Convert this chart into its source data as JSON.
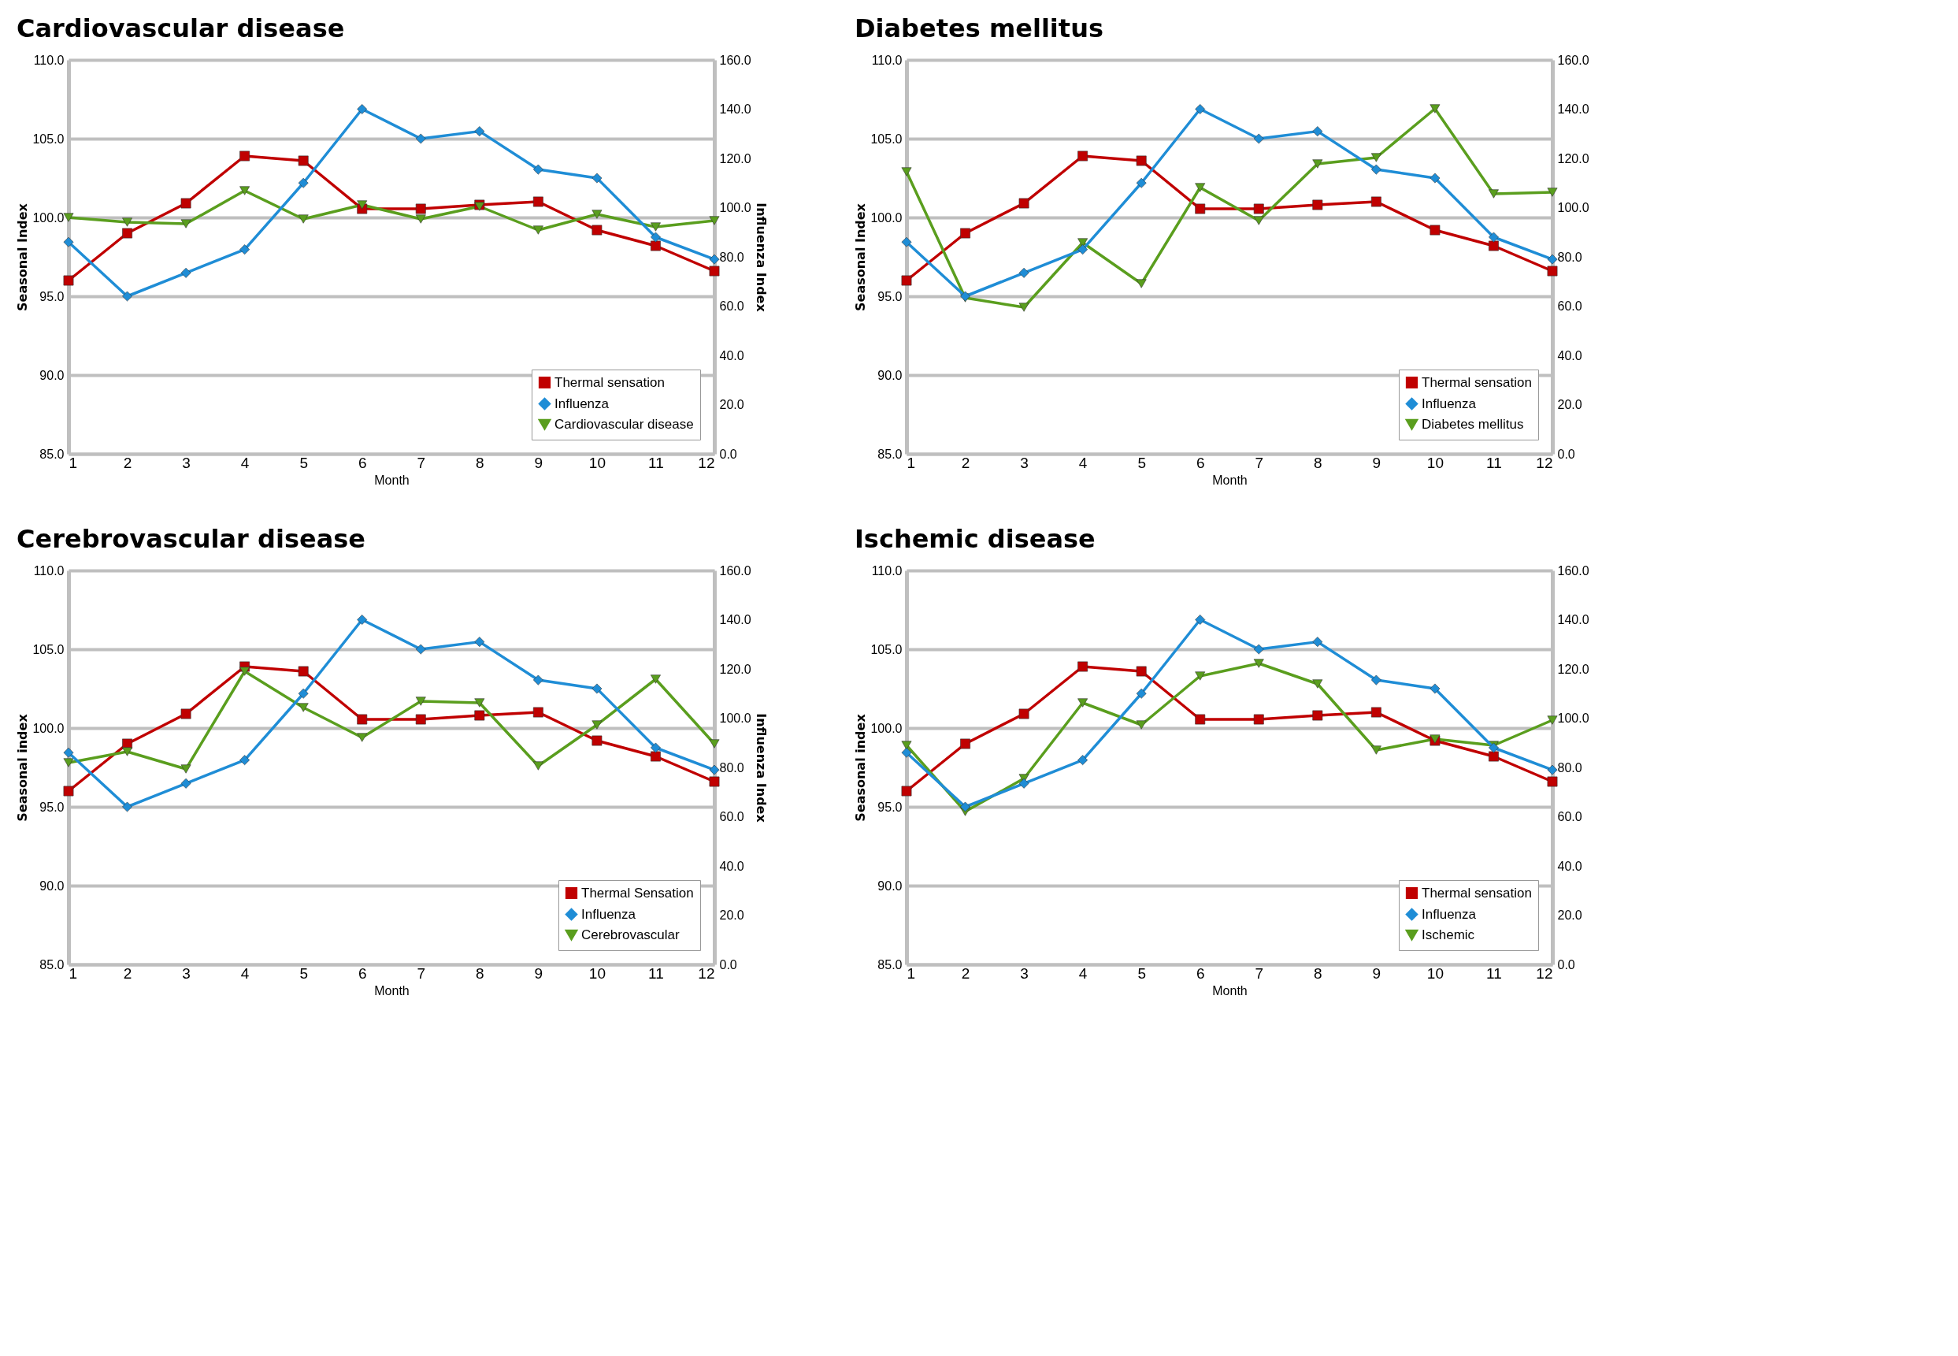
{
  "chart_data": [
    {
      "type": "line",
      "title": "Cardiovascular disease",
      "xlabel": "Month",
      "ylabel": "Seasonal Index",
      "y2label": "Influenza Index",
      "x": [
        1,
        2,
        3,
        4,
        5,
        6,
        7,
        8,
        9,
        10,
        11,
        12
      ],
      "xlim": [
        1,
        12
      ],
      "xticks": [
        1,
        2,
        3,
        4,
        5,
        6,
        7,
        8,
        9,
        10,
        11,
        12
      ],
      "ylim": [
        85,
        110
      ],
      "yticks": [
        {
          "value": 85,
          "label": "85.0"
        },
        {
          "value": 90,
          "label": "90.0"
        },
        {
          "value": 95,
          "label": "95.0"
        },
        {
          "value": 100,
          "label": "100.0"
        },
        {
          "value": 105,
          "label": "105.0"
        },
        {
          "value": 110,
          "label": "110.0"
        }
      ],
      "y2lim": [
        0,
        160
      ],
      "y2ticks": [
        {
          "value": 0,
          "label": "0.0"
        },
        {
          "value": 20,
          "label": "20.0"
        },
        {
          "value": 40,
          "label": "40.0"
        },
        {
          "value": 60,
          "label": "60.0"
        },
        {
          "value": 80,
          "label": "80.0"
        },
        {
          "value": 100,
          "label": "100.0"
        },
        {
          "value": 120,
          "label": "120.0"
        },
        {
          "value": 140,
          "label": "140.0"
        },
        {
          "value": 160,
          "label": "160.0"
        }
      ],
      "grid": "y",
      "legend": "bottom right",
      "line_style": "solid",
      "series": [
        {
          "name": "Thermal sensation",
          "color": "#c00000",
          "marker": "square",
          "values": [
            96.0,
            99.0,
            100.9,
            103.9,
            103.6,
            100.55,
            100.55,
            100.8,
            101.0,
            99.2,
            98.2,
            96.6
          ]
        },
        {
          "name": "Influenza",
          "color": "#1f8dd6",
          "marker": "diamond",
          "axis": "y2",
          "values": [
            86,
            64,
            73.5,
            83,
            110,
            140,
            128,
            131,
            115.5,
            112,
            88,
            79
          ]
        },
        {
          "name": "Cardiovascular disease",
          "color": "#5a9e1e",
          "marker": "triangle",
          "values": [
            100.0,
            99.7,
            99.6,
            101.7,
            99.9,
            100.8,
            99.9,
            100.7,
            99.2,
            100.2,
            99.4,
            99.8
          ]
        }
      ]
    },
    {
      "type": "line",
      "title": "Diabetes mellitus",
      "xlabel": "Month",
      "ylabel": "Seasonal Index",
      "x": [
        1,
        2,
        3,
        4,
        5,
        6,
        7,
        8,
        9,
        10,
        11,
        12
      ],
      "xlim": [
        1,
        12
      ],
      "xticks": [
        1,
        2,
        3,
        4,
        5,
        6,
        7,
        8,
        9,
        10,
        11,
        12
      ],
      "ylim": [
        85,
        110
      ],
      "yticks": [
        {
          "value": 85,
          "label": "85.0"
        },
        {
          "value": 90,
          "label": "90.0"
        },
        {
          "value": 95,
          "label": "95.0"
        },
        {
          "value": 100,
          "label": "100.0"
        },
        {
          "value": 105,
          "label": "105.0"
        },
        {
          "value": 110,
          "label": "110.0"
        }
      ],
      "y2lim": [
        0,
        160
      ],
      "y2ticks": [
        {
          "value": 0,
          "label": "0.0"
        },
        {
          "value": 20,
          "label": "20.0"
        },
        {
          "value": 40,
          "label": "40.0"
        },
        {
          "value": 60,
          "label": "60.0"
        },
        {
          "value": 80,
          "label": "80.0"
        },
        {
          "value": 100,
          "label": "100.0"
        },
        {
          "value": 120,
          "label": "120.0"
        },
        {
          "value": 140,
          "label": "140.0"
        },
        {
          "value": 160,
          "label": "160.0"
        }
      ],
      "grid": "y",
      "legend": "bottom right",
      "line_style": "solid",
      "series": [
        {
          "name": "Thermal sensation",
          "color": "#c00000",
          "marker": "square",
          "values": [
            96.0,
            99.0,
            100.9,
            103.9,
            103.6,
            100.55,
            100.55,
            100.8,
            101.0,
            99.2,
            98.2,
            96.6
          ]
        },
        {
          "name": "Influenza",
          "color": "#1f8dd6",
          "marker": "diamond",
          "axis": "y2",
          "values": [
            86,
            64,
            73.5,
            83,
            110,
            140,
            128,
            131,
            115.5,
            112,
            88,
            79
          ]
        },
        {
          "name": "Diabetes mellitus",
          "color": "#5a9e1e",
          "marker": "triangle",
          "values": [
            102.9,
            94.9,
            94.3,
            98.4,
            95.8,
            101.9,
            99.8,
            103.4,
            103.8,
            106.9,
            101.5,
            101.6
          ]
        }
      ]
    },
    {
      "type": "line",
      "title": "Cerebrovascular disease",
      "xlabel": "Month",
      "ylabel": "Seasonal index",
      "y2label": "Influenza Index",
      "x": [
        1,
        2,
        3,
        4,
        5,
        6,
        7,
        8,
        9,
        10,
        11,
        12
      ],
      "xlim": [
        1,
        12
      ],
      "xticks": [
        1,
        2,
        3,
        4,
        5,
        6,
        7,
        8,
        9,
        10,
        11,
        12
      ],
      "ylim": [
        85,
        110
      ],
      "yticks": [
        {
          "value": 85,
          "label": "85.0"
        },
        {
          "value": 90,
          "label": "90.0"
        },
        {
          "value": 95,
          "label": "95.0"
        },
        {
          "value": 100,
          "label": "100.0"
        },
        {
          "value": 105,
          "label": "105.0"
        },
        {
          "value": 110,
          "label": "110.0"
        }
      ],
      "y2lim": [
        0,
        160
      ],
      "y2ticks": [
        {
          "value": 0,
          "label": "0.0"
        },
        {
          "value": 20,
          "label": "20.0"
        },
        {
          "value": 40,
          "label": "40.0"
        },
        {
          "value": 60,
          "label": "60.0"
        },
        {
          "value": 80,
          "label": "80.0"
        },
        {
          "value": 100,
          "label": "100.0"
        },
        {
          "value": 120,
          "label": "120.0"
        },
        {
          "value": 140,
          "label": "140.0"
        },
        {
          "value": 160,
          "label": "160.0"
        }
      ],
      "grid": "y",
      "legend": "bottom right",
      "line_style": "solid",
      "series": [
        {
          "name": "Thermal Sensation",
          "color": "#c00000",
          "marker": "square",
          "values": [
            96.0,
            99.0,
            100.9,
            103.9,
            103.6,
            100.55,
            100.55,
            100.8,
            101.0,
            99.2,
            98.2,
            96.6
          ]
        },
        {
          "name": "Influenza",
          "color": "#1f8dd6",
          "marker": "diamond",
          "axis": "y2",
          "values": [
            86,
            64,
            73.5,
            83,
            110,
            140,
            128,
            131,
            115.5,
            112,
            88,
            79
          ]
        },
        {
          "name": "Cerebrovascular",
          "color": "#5a9e1e",
          "marker": "triangle",
          "values": [
            97.8,
            98.5,
            97.4,
            103.6,
            101.3,
            99.4,
            101.7,
            101.6,
            97.6,
            100.2,
            103.1,
            99.0
          ]
        }
      ]
    },
    {
      "type": "line",
      "title": "Ischemic disease",
      "xlabel": "Month",
      "ylabel": "Seasonal index",
      "x": [
        1,
        2,
        3,
        4,
        5,
        6,
        7,
        8,
        9,
        10,
        11,
        12
      ],
      "xlim": [
        1,
        12
      ],
      "xticks": [
        1,
        2,
        3,
        4,
        5,
        6,
        7,
        8,
        9,
        10,
        11,
        12
      ],
      "ylim": [
        85,
        110
      ],
      "yticks": [
        {
          "value": 85,
          "label": "85.0"
        },
        {
          "value": 90,
          "label": "90.0"
        },
        {
          "value": 95,
          "label": "95.0"
        },
        {
          "value": 100,
          "label": "100.0"
        },
        {
          "value": 105,
          "label": "105.0"
        },
        {
          "value": 110,
          "label": "110.0"
        }
      ],
      "y2lim": [
        0,
        160
      ],
      "y2ticks": [
        {
          "value": 0,
          "label": "0.0"
        },
        {
          "value": 20,
          "label": "20.0"
        },
        {
          "value": 40,
          "label": "40.0"
        },
        {
          "value": 60,
          "label": "60.0"
        },
        {
          "value": 80,
          "label": "80.0"
        },
        {
          "value": 100,
          "label": "100.0"
        },
        {
          "value": 120,
          "label": "120.0"
        },
        {
          "value": 140,
          "label": "140.0"
        },
        {
          "value": 160,
          "label": "160.0"
        }
      ],
      "grid": "y",
      "legend": "bottom right",
      "line_style": "solid",
      "series": [
        {
          "name": "Thermal sensation",
          "color": "#c00000",
          "marker": "square",
          "values": [
            96.0,
            99.0,
            100.9,
            103.9,
            103.6,
            100.55,
            100.55,
            100.8,
            101.0,
            99.2,
            98.2,
            96.6
          ]
        },
        {
          "name": "Influenza",
          "color": "#1f8dd6",
          "marker": "diamond",
          "axis": "y2",
          "values": [
            86,
            64,
            73.5,
            83,
            110,
            140,
            128,
            131,
            115.5,
            112,
            88,
            79
          ]
        },
        {
          "name": "Ischemic",
          "color": "#5a9e1e",
          "marker": "triangle",
          "values": [
            98.9,
            94.7,
            96.8,
            101.6,
            100.2,
            103.3,
            104.1,
            102.8,
            98.6,
            99.3,
            98.9,
            100.5
          ]
        }
      ]
    }
  ]
}
